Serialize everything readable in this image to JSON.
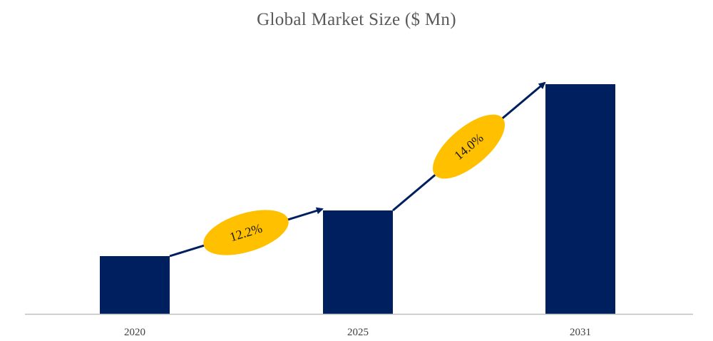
{
  "chart_data": {
    "type": "bar",
    "title": "Global Market Size ($ Mn)",
    "categories": [
      "2020",
      "2025",
      "2031"
    ],
    "values": [
      81,
      145,
      322
    ],
    "ylim": [
      0,
      330
    ],
    "xlabel": "",
    "ylabel": "",
    "grid": false,
    "legend": "none",
    "bar_color": "#001f5f",
    "annotations": [
      {
        "label": "12.2%",
        "from": "2020",
        "to": "2025",
        "color": "#ffc000"
      },
      {
        "label": "14.0%",
        "from": "2025",
        "to": "2031",
        "color": "#ffc000"
      }
    ],
    "arrow_color": "#001f5f",
    "axis_color": "#bfbfbf"
  }
}
